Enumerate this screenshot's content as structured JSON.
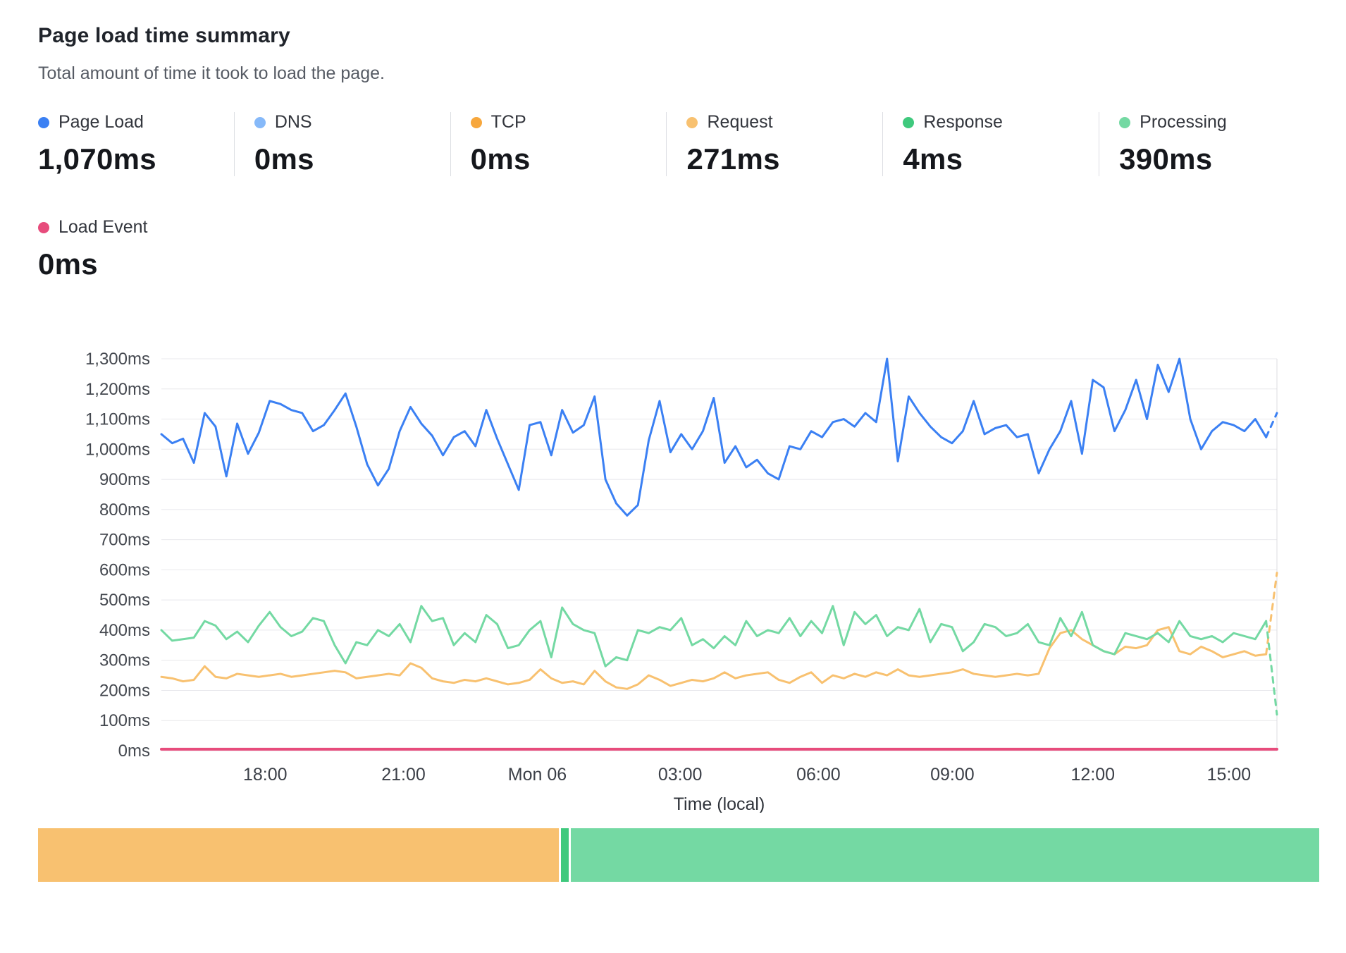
{
  "header": {
    "title": "Page load time summary",
    "subtitle": "Total amount of time it took to load the page."
  },
  "metrics": {
    "items": [
      {
        "label": "Page Load",
        "value": "1,070ms",
        "color": "#3b80f3"
      },
      {
        "label": "DNS",
        "value": "0ms",
        "color": "#86b9f9"
      },
      {
        "label": "TCP",
        "value": "0ms",
        "color": "#f7a73c"
      },
      {
        "label": "Request",
        "value": "271ms",
        "color": "#f8c170"
      },
      {
        "label": "Response",
        "value": "4ms",
        "color": "#3fc97d"
      },
      {
        "label": "Processing",
        "value": "390ms",
        "color": "#74d9a3"
      }
    ],
    "load_event": {
      "label": "Load Event",
      "value": "0ms",
      "color": "#e74c7c"
    }
  },
  "chart_data": {
    "type": "line",
    "title": "Page load time summary",
    "xlabel": "Time (local)",
    "ylabel": "",
    "ylim": [
      0,
      1300
    ],
    "grid": true,
    "legend_position": "top",
    "y_ticks": [
      {
        "value": 0,
        "label": "0ms"
      },
      {
        "value": 100,
        "label": "100ms"
      },
      {
        "value": 200,
        "label": "200ms"
      },
      {
        "value": 300,
        "label": "300ms"
      },
      {
        "value": 400,
        "label": "400ms"
      },
      {
        "value": 500,
        "label": "500ms"
      },
      {
        "value": 600,
        "label": "600ms"
      },
      {
        "value": 700,
        "label": "700ms"
      },
      {
        "value": 800,
        "label": "800ms"
      },
      {
        "value": 900,
        "label": "900ms"
      },
      {
        "value": 1000,
        "label": "1,000ms"
      },
      {
        "value": 1100,
        "label": "1,100ms"
      },
      {
        "value": 1200,
        "label": "1,200ms"
      },
      {
        "value": 1300,
        "label": "1,300ms"
      }
    ],
    "x_ticks": [
      {
        "label": "18:00",
        "pos": 0.093
      },
      {
        "label": "21:00",
        "pos": 0.217
      },
      {
        "label": "Mon 06",
        "pos": 0.337
      },
      {
        "label": "03:00",
        "pos": 0.465
      },
      {
        "label": "06:00",
        "pos": 0.589
      },
      {
        "label": "09:00",
        "pos": 0.709
      },
      {
        "label": "12:00",
        "pos": 0.835
      },
      {
        "label": "15:00",
        "pos": 0.957
      }
    ],
    "series": [
      {
        "name": "Request",
        "color": "#f8c170",
        "width": 3,
        "dash_tail": 1,
        "values": [
          245,
          240,
          230,
          235,
          280,
          245,
          240,
          255,
          250,
          245,
          250,
          255,
          245,
          250,
          255,
          260,
          265,
          260,
          240,
          245,
          250,
          255,
          250,
          290,
          275,
          240,
          230,
          225,
          235,
          230,
          240,
          230,
          220,
          225,
          235,
          270,
          240,
          225,
          230,
          220,
          265,
          230,
          210,
          205,
          220,
          250,
          235,
          215,
          225,
          235,
          230,
          240,
          260,
          240,
          250,
          255,
          260,
          235,
          225,
          245,
          260,
          225,
          250,
          240,
          255,
          245,
          260,
          250,
          270,
          250,
          245,
          250,
          255,
          260,
          270,
          255,
          250,
          245,
          250,
          255,
          250,
          255,
          340,
          390,
          400,
          370,
          350,
          330,
          320,
          345,
          340,
          350,
          400,
          410,
          330,
          320,
          345,
          330,
          310,
          320,
          330,
          315,
          320,
          590
        ]
      },
      {
        "name": "Processing",
        "color": "#74d9a3",
        "width": 3,
        "dash_tail": 1,
        "values": [
          400,
          365,
          370,
          375,
          430,
          415,
          370,
          395,
          360,
          415,
          460,
          410,
          380,
          395,
          440,
          430,
          350,
          290,
          360,
          350,
          400,
          380,
          420,
          360,
          480,
          430,
          440,
          350,
          390,
          360,
          450,
          420,
          340,
          350,
          400,
          430,
          310,
          475,
          420,
          400,
          390,
          280,
          310,
          300,
          400,
          390,
          410,
          400,
          440,
          350,
          370,
          340,
          380,
          350,
          430,
          380,
          400,
          390,
          440,
          380,
          430,
          390,
          480,
          350,
          460,
          420,
          450,
          380,
          410,
          400,
          470,
          360,
          420,
          410,
          330,
          360,
          420,
          410,
          380,
          390,
          420,
          360,
          350,
          440,
          380,
          460,
          350,
          330,
          320,
          390,
          380,
          370,
          390,
          360,
          430,
          380,
          370,
          380,
          360,
          390,
          380,
          370,
          430,
          120
        ]
      },
      {
        "name": "Page Load",
        "color": "#3b80f3",
        "width": 3,
        "dash_tail": 1,
        "values": [
          1050,
          1020,
          1035,
          955,
          1120,
          1075,
          910,
          1085,
          985,
          1055,
          1160,
          1150,
          1130,
          1120,
          1060,
          1080,
          1130,
          1185,
          1075,
          950,
          880,
          935,
          1060,
          1140,
          1085,
          1045,
          980,
          1040,
          1060,
          1010,
          1130,
          1035,
          950,
          865,
          1080,
          1090,
          980,
          1130,
          1055,
          1080,
          1175,
          900,
          820,
          780,
          815,
          1030,
          1160,
          990,
          1050,
          1000,
          1060,
          1170,
          955,
          1010,
          940,
          965,
          920,
          900,
          1010,
          1000,
          1060,
          1040,
          1090,
          1100,
          1075,
          1120,
          1090,
          1300,
          960,
          1175,
          1120,
          1075,
          1040,
          1020,
          1060,
          1160,
          1050,
          1070,
          1080,
          1040,
          1050,
          920,
          1000,
          1060,
          1160,
          985,
          1230,
          1205,
          1060,
          1130,
          1230,
          1100,
          1280,
          1190,
          1300,
          1100,
          1000,
          1060,
          1090,
          1080,
          1060,
          1100,
          1040,
          1120
        ]
      },
      {
        "name": "Load Event",
        "color": "#e74c7c",
        "width": 4,
        "dash_tail": 0,
        "values": [
          5,
          5
        ]
      }
    ]
  },
  "footer_bar": {
    "segments": [
      {
        "name": "request-share",
        "color": "#f8c170",
        "fraction": 0.408
      },
      {
        "name": "response-share",
        "color": "#3fc97d",
        "fraction": 0.006
      },
      {
        "name": "processing-share",
        "color": "#74d9a3",
        "fraction": 0.586
      }
    ]
  }
}
